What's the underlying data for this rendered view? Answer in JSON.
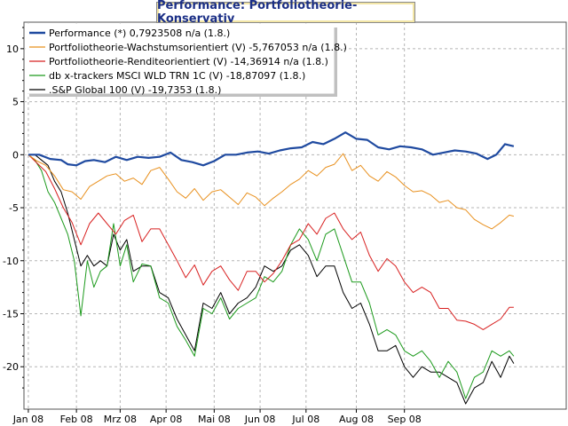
{
  "chart_data": {
    "type": "line",
    "title": "Performance: Portfoliotheorie-Konservativ",
    "xlabel": "",
    "ylabel": "",
    "x_ticks": [
      "Jan 08",
      "Feb 08",
      "Mrz 08",
      "Apr 08",
      "Mai 08",
      "Jun 08",
      "Jul 08",
      "Aug 08",
      "Sep 08"
    ],
    "y_ticks": [
      "10",
      "5",
      "0",
      "-5",
      "-10",
      "-15",
      "-20"
    ],
    "ylim": [
      -24,
      12.5
    ],
    "xlim": [
      -2,
      246
    ],
    "grid": true,
    "legend_position": "top-left",
    "series": [
      {
        "name": "Performance (*) 0,7923508 n/a (1.8.)",
        "color": "#1f4aa0",
        "x": [
          0,
          5,
          10,
          15,
          18,
          22,
          26,
          30,
          35,
          40,
          45,
          50,
          55,
          60,
          65,
          70,
          75,
          80,
          85,
          90,
          95,
          100,
          105,
          110,
          115,
          120,
          125,
          130,
          135,
          140,
          145,
          150,
          155,
          160,
          165,
          170,
          175,
          180,
          185,
          190,
          195,
          200,
          205,
          210,
          214,
          218,
          222
        ],
        "values": [
          0,
          0.0,
          -0.4,
          -0.5,
          -0.9,
          -1.0,
          -0.6,
          -0.5,
          -0.7,
          -0.2,
          -0.5,
          -0.2,
          -0.3,
          -0.2,
          0.2,
          -0.5,
          -0.7,
          -1.0,
          -0.6,
          0.0,
          0.0,
          0.2,
          0.3,
          0.1,
          0.4,
          0.6,
          0.7,
          1.2,
          1.0,
          1.5,
          2.1,
          1.5,
          1.4,
          0.7,
          0.5,
          0.8,
          0.7,
          0.5,
          0.0,
          0.2,
          0.4,
          0.3,
          0.1,
          -0.4,
          0.0,
          1.0,
          0.8
        ]
      },
      {
        "name": "Portfoliotheorie-Wachstumsorientiert (V) -5,767053 n/a (1.8.)",
        "color": "#e8901e",
        "x": [
          0,
          4,
          8,
          12,
          16,
          20,
          24,
          28,
          32,
          36,
          40,
          44,
          48,
          52,
          56,
          60,
          64,
          68,
          72,
          76,
          80,
          84,
          88,
          92,
          96,
          100,
          104,
          108,
          112,
          116,
          120,
          124,
          128,
          132,
          136,
          140,
          144,
          148,
          152,
          156,
          160,
          164,
          168,
          172,
          176,
          180,
          184,
          188,
          192,
          196,
          200,
          204,
          208,
          212,
          216,
          220,
          222
        ],
        "values": [
          0,
          -0.6,
          -1.0,
          -2.0,
          -3.3,
          -3.5,
          -4.2,
          -3.0,
          -2.5,
          -2.0,
          -1.8,
          -2.5,
          -2.2,
          -2.8,
          -1.5,
          -1.2,
          -2.3,
          -3.5,
          -4.1,
          -3.2,
          -4.3,
          -3.5,
          -3.3,
          -4.0,
          -4.7,
          -3.6,
          -4.0,
          -4.8,
          -4.1,
          -3.5,
          -2.8,
          -2.3,
          -1.5,
          -2.0,
          -1.2,
          -0.9,
          0.1,
          -1.5,
          -1.0,
          -2.0,
          -2.5,
          -1.6,
          -2.1,
          -2.9,
          -3.5,
          -3.4,
          -3.8,
          -4.5,
          -4.3,
          -5.0,
          -5.2,
          -6.1,
          -6.6,
          -7.0,
          -6.4,
          -5.7,
          -5.8
        ]
      },
      {
        "name": "Portfoliotheorie-Renditeorientiert (V) -14,36914 n/a (1.8.)",
        "color": "#d82020",
        "x": [
          0,
          4,
          8,
          12,
          16,
          20,
          24,
          28,
          32,
          36,
          40,
          44,
          48,
          52,
          56,
          60,
          64,
          68,
          72,
          76,
          80,
          84,
          88,
          92,
          96,
          100,
          104,
          108,
          112,
          116,
          120,
          124,
          128,
          132,
          136,
          140,
          144,
          148,
          152,
          156,
          160,
          164,
          168,
          172,
          176,
          180,
          184,
          188,
          192,
          196,
          200,
          204,
          208,
          212,
          216,
          220,
          222
        ],
        "values": [
          0,
          -0.8,
          -1.6,
          -3.2,
          -5.0,
          -6.4,
          -8.5,
          -6.5,
          -5.5,
          -6.5,
          -7.5,
          -6.2,
          -5.7,
          -8.2,
          -7.0,
          -7.0,
          -8.5,
          -10.0,
          -11.6,
          -10.4,
          -12.3,
          -11.0,
          -10.5,
          -11.8,
          -12.8,
          -11.0,
          -11.0,
          -12.0,
          -11.2,
          -10.0,
          -8.5,
          -8.0,
          -6.5,
          -7.5,
          -6.0,
          -5.5,
          -7.0,
          -8.0,
          -7.3,
          -9.5,
          -11.0,
          -9.8,
          -10.5,
          -12.0,
          -13.0,
          -12.5,
          -13.0,
          -14.5,
          -14.5,
          -15.6,
          -15.7,
          -16.0,
          -16.5,
          -16.0,
          -15.5,
          -14.4,
          -14.4
        ]
      },
      {
        "name": "db x-trackers MSCI WLD TRN 1C (V) -18,87097 (1.8.)",
        "color": "#1c9a1c",
        "x": [
          0,
          3,
          6,
          9,
          12,
          15,
          18,
          21,
          24,
          27,
          30,
          33,
          36,
          39,
          42,
          45,
          48,
          52,
          56,
          60,
          64,
          68,
          72,
          76,
          80,
          84,
          88,
          92,
          96,
          100,
          104,
          108,
          112,
          116,
          120,
          124,
          128,
          132,
          136,
          140,
          144,
          148,
          152,
          156,
          160,
          164,
          168,
          172,
          176,
          180,
          184,
          188,
          192,
          196,
          200,
          204,
          208,
          212,
          216,
          220,
          222
        ],
        "values": [
          0,
          -0.5,
          -1.5,
          -3.5,
          -4.5,
          -6.0,
          -7.5,
          -10.0,
          -15.2,
          -10.0,
          -12.5,
          -11.0,
          -10.5,
          -6.5,
          -10.5,
          -8.5,
          -12.0,
          -10.3,
          -10.5,
          -13.5,
          -14.0,
          -16.2,
          -17.5,
          -19.0,
          -14.5,
          -15.0,
          -13.5,
          -15.5,
          -14.5,
          -14.0,
          -13.5,
          -11.5,
          -12.0,
          -11.0,
          -8.5,
          -7.0,
          -8.0,
          -10.0,
          -7.5,
          -7.0,
          -9.5,
          -12.0,
          -12.0,
          -14.0,
          -17.0,
          -16.5,
          -17.0,
          -18.5,
          -19.0,
          -18.5,
          -19.5,
          -21.0,
          -19.5,
          -20.5,
          -23.0,
          -21.0,
          -20.5,
          -18.5,
          -19.0,
          -18.5,
          -19.0
        ]
      },
      {
        "name": ".S&P Global 100 (V) -19,7353 (1.8.)",
        "color": "#000000",
        "x": [
          0,
          3,
          6,
          9,
          12,
          15,
          18,
          21,
          24,
          27,
          30,
          33,
          36,
          39,
          42,
          45,
          48,
          52,
          56,
          60,
          64,
          68,
          72,
          76,
          80,
          84,
          88,
          92,
          96,
          100,
          104,
          108,
          112,
          116,
          120,
          124,
          128,
          132,
          136,
          140,
          144,
          148,
          152,
          156,
          160,
          164,
          168,
          172,
          176,
          180,
          184,
          188,
          192,
          196,
          200,
          204,
          208,
          212,
          216,
          220,
          222
        ],
        "values": [
          0,
          0.0,
          -0.5,
          -1.0,
          -2.5,
          -3.5,
          -5.5,
          -8.0,
          -10.5,
          -9.5,
          -10.5,
          -10.0,
          -10.5,
          -7.5,
          -9.0,
          -8.0,
          -11.0,
          -10.5,
          -10.5,
          -13.0,
          -13.5,
          -15.5,
          -17.0,
          -18.5,
          -14.0,
          -14.5,
          -13.0,
          -15.0,
          -14.0,
          -13.5,
          -12.5,
          -10.5,
          -11.0,
          -10.5,
          -9.0,
          -8.5,
          -9.5,
          -11.5,
          -10.5,
          -10.5,
          -13.0,
          -14.5,
          -14.0,
          -16.0,
          -18.5,
          -18.5,
          -18.0,
          -20.0,
          -21.0,
          -20.0,
          -20.5,
          -20.5,
          -21.0,
          -21.5,
          -23.5,
          -22.0,
          -21.5,
          -19.5,
          -21.0,
          -19.0,
          -19.7
        ]
      }
    ]
  }
}
